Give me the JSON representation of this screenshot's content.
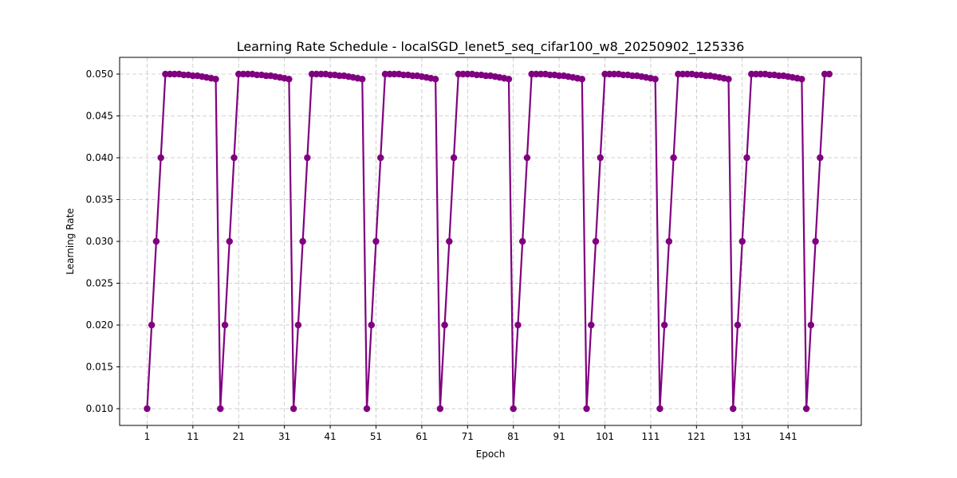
{
  "chart_data": {
    "type": "line",
    "title": "Learning Rate Schedule - localSGD_lenet5_seq_cifar100_w8_20250902_125336",
    "xlabel": "Epoch",
    "ylabel": "Learning Rate",
    "xlim": [
      -5,
      157
    ],
    "ylim": [
      0.008,
      0.052
    ],
    "xticks": [
      1,
      11,
      21,
      31,
      41,
      51,
      61,
      71,
      81,
      91,
      101,
      111,
      121,
      131,
      141
    ],
    "yticks": [
      0.01,
      0.015,
      0.02,
      0.025,
      0.03,
      0.035,
      0.04,
      0.045,
      0.05
    ],
    "ytick_labels": [
      "0.010",
      "0.015",
      "0.020",
      "0.025",
      "0.030",
      "0.035",
      "0.040",
      "0.045",
      "0.050"
    ],
    "grid": true,
    "color": "#800080",
    "series": [
      {
        "name": "",
        "x": [
          1,
          2,
          3,
          4,
          5,
          6,
          7,
          8,
          9,
          10,
          11,
          12,
          13,
          14,
          15,
          16,
          17,
          18,
          19,
          20,
          21,
          22,
          23,
          24,
          25,
          26,
          27,
          28,
          29,
          30,
          31,
          32,
          33,
          34,
          35,
          36,
          37,
          38,
          39,
          40,
          41,
          42,
          43,
          44,
          45,
          46,
          47,
          48,
          49,
          50,
          51,
          52,
          53,
          54,
          55,
          56,
          57,
          58,
          59,
          60,
          61,
          62,
          63,
          64,
          65,
          66,
          67,
          68,
          69,
          70,
          71,
          72,
          73,
          74,
          75,
          76,
          77,
          78,
          79,
          80,
          81,
          82,
          83,
          84,
          85,
          86,
          87,
          88,
          89,
          90,
          91,
          92,
          93,
          94,
          95,
          96,
          97,
          98,
          99,
          100,
          101,
          102,
          103,
          104,
          105,
          106,
          107,
          108,
          109,
          110,
          111,
          112,
          113,
          114,
          115,
          116,
          117,
          118,
          119,
          120,
          121,
          122,
          123,
          124,
          125,
          126,
          127,
          128,
          129,
          130,
          131,
          132,
          133,
          134,
          135,
          136,
          137,
          138,
          139,
          140,
          141,
          142,
          143,
          144,
          145,
          146,
          147,
          148,
          149,
          150
        ],
        "y": [
          0.01,
          0.02,
          0.03,
          0.04,
          0.05,
          0.05,
          0.05,
          0.05,
          0.0499,
          0.0499,
          0.0498,
          0.0498,
          0.0497,
          0.0496,
          0.0495,
          0.0494,
          0.01,
          0.02,
          0.03,
          0.04,
          0.05,
          0.05,
          0.05,
          0.05,
          0.0499,
          0.0499,
          0.0498,
          0.0498,
          0.0497,
          0.0496,
          0.0495,
          0.0494,
          0.01,
          0.02,
          0.03,
          0.04,
          0.05,
          0.05,
          0.05,
          0.05,
          0.0499,
          0.0499,
          0.0498,
          0.0498,
          0.0497,
          0.0496,
          0.0495,
          0.0494,
          0.01,
          0.02,
          0.03,
          0.04,
          0.05,
          0.05,
          0.05,
          0.05,
          0.0499,
          0.0499,
          0.0498,
          0.0498,
          0.0497,
          0.0496,
          0.0495,
          0.0494,
          0.01,
          0.02,
          0.03,
          0.04,
          0.05,
          0.05,
          0.05,
          0.05,
          0.0499,
          0.0499,
          0.0498,
          0.0498,
          0.0497,
          0.0496,
          0.0495,
          0.0494,
          0.01,
          0.02,
          0.03,
          0.04,
          0.05,
          0.05,
          0.05,
          0.05,
          0.0499,
          0.0499,
          0.0498,
          0.0498,
          0.0497,
          0.0496,
          0.0495,
          0.0494,
          0.01,
          0.02,
          0.03,
          0.04,
          0.05,
          0.05,
          0.05,
          0.05,
          0.0499,
          0.0499,
          0.0498,
          0.0498,
          0.0497,
          0.0496,
          0.0495,
          0.0494,
          0.01,
          0.02,
          0.03,
          0.04,
          0.05,
          0.05,
          0.05,
          0.05,
          0.0499,
          0.0499,
          0.0498,
          0.0498,
          0.0497,
          0.0496,
          0.0495,
          0.0494,
          0.01,
          0.02,
          0.03,
          0.04,
          0.05,
          0.05,
          0.05,
          0.05,
          0.0499,
          0.0499,
          0.0498,
          0.0498,
          0.0497,
          0.0496,
          0.0495,
          0.0494,
          0.01,
          0.02,
          0.03,
          0.04,
          0.05,
          0.05
        ]
      }
    ]
  }
}
